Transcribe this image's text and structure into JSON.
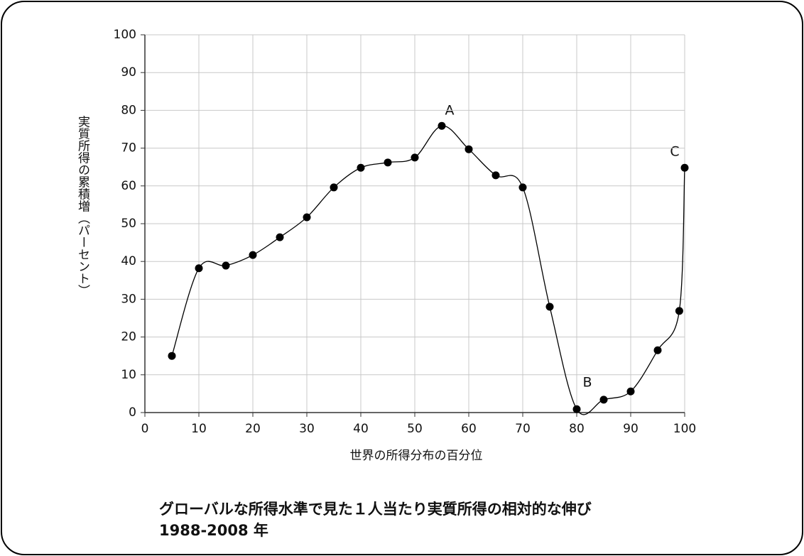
{
  "chart_data": {
    "type": "line",
    "title": "グローバルな所得水準で見た１人当たり実質所得の相対的な伸び",
    "subtitle": "1988-2008 年",
    "x_label": "世界の所得分布の百分位",
    "y_label": "実質所得の累積増（パーセント）",
    "x": [
      5,
      10,
      15,
      20,
      25,
      30,
      35,
      40,
      45,
      50,
      55,
      60,
      65,
      70,
      75,
      80,
      85,
      90,
      95,
      99,
      100
    ],
    "series": [
      {
        "color": "#000000",
        "values": [
          15.0,
          38.2,
          38.9,
          41.7,
          46.4,
          51.7,
          59.6,
          64.8,
          66.2,
          67.5,
          75.9,
          69.7,
          62.8,
          59.6,
          28.0,
          0.9,
          3.4,
          5.6,
          16.5,
          26.9,
          64.8
        ]
      }
    ],
    "annotations": [
      "A",
      "B",
      "C"
    ],
    "xlim": [
      0,
      100
    ],
    "xticks": [
      0,
      10,
      20,
      30,
      40,
      50,
      60,
      70,
      80,
      90,
      100
    ],
    "ylim": [
      0,
      100
    ],
    "yticks": [
      0,
      10,
      20,
      30,
      40,
      50,
      60,
      70,
      80,
      90,
      100
    ],
    "grid": true
  }
}
